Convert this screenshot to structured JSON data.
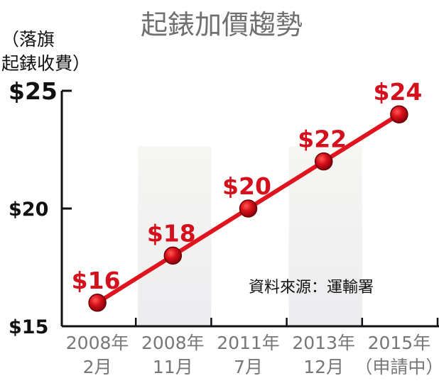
{
  "chart_data": {
    "type": "line",
    "title": "起錶加價趨勢",
    "ylabel_lines": [
      "（落旗",
      "起錶收費）"
    ],
    "ylim": [
      15,
      25
    ],
    "yticks": [
      {
        "value": 25,
        "label": "$25"
      },
      {
        "value": 20,
        "label": "$20"
      },
      {
        "value": 15,
        "label": "$15"
      }
    ],
    "categories": [
      {
        "line1": "2008年",
        "line2": "2月"
      },
      {
        "line1": "2008年",
        "line2": "11月"
      },
      {
        "line1": "2011年",
        "line2": "7月"
      },
      {
        "line1": "2013年",
        "line2": "12月"
      },
      {
        "line1": "2015年",
        "line2": "（申請中）"
      }
    ],
    "values": [
      16,
      18,
      20,
      22,
      24
    ],
    "data_labels": [
      "$16",
      "$18",
      "$20",
      "$22",
      "$24"
    ],
    "source": "資料來源：運輸署",
    "grid": false,
    "colors": {
      "line": "#e0141e",
      "marker": "#c80a14",
      "label": "#d4101c",
      "band": "#eeeef1",
      "axis": "#111111"
    }
  }
}
